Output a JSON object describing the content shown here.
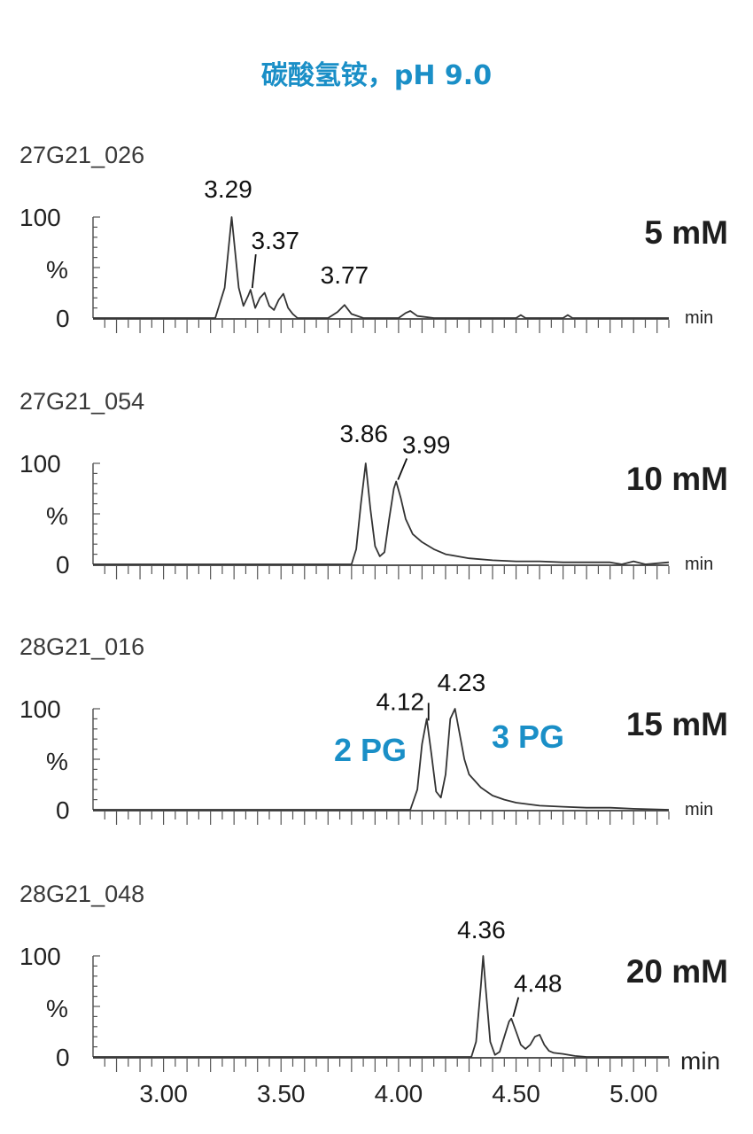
{
  "title": "碳酸氢铵，pH 9.0",
  "accent_color": "#1a8fc7",
  "chart_data": [
    {
      "type": "line",
      "sample_id": "27G21_026",
      "concentration": "5 mM",
      "ylabel": "%",
      "yticks": [
        "0",
        "100"
      ],
      "xunit": "min",
      "xlim": [
        2.7,
        5.15
      ],
      "ylim": [
        0,
        100
      ],
      "peak_labels": [
        {
          "label": "3.29",
          "x": 3.29
        },
        {
          "label": "3.37",
          "x": 3.37
        },
        {
          "label": "3.77",
          "x": 3.77
        }
      ],
      "series": [
        {
          "x": [
            2.7,
            3.22,
            3.26,
            3.29,
            3.32,
            3.34,
            3.36,
            3.37,
            3.39,
            3.41,
            3.43,
            3.45,
            3.47,
            3.49,
            3.51,
            3.53,
            3.55,
            3.57,
            3.7,
            3.74,
            3.77,
            3.8,
            3.85,
            4.0,
            4.03,
            4.05,
            4.08,
            4.15,
            4.5,
            4.52,
            4.54,
            4.7,
            4.72,
            4.74,
            5.15
          ],
          "y": [
            0,
            0,
            30,
            100,
            30,
            12,
            22,
            28,
            10,
            20,
            25,
            12,
            8,
            18,
            24,
            10,
            4,
            0,
            0,
            6,
            13,
            4,
            0,
            0,
            5,
            7,
            2,
            0,
            0,
            3,
            0,
            0,
            3,
            0,
            0
          ]
        }
      ]
    },
    {
      "type": "line",
      "sample_id": "27G21_054",
      "concentration": "10 mM",
      "ylabel": "%",
      "yticks": [
        "0",
        "100"
      ],
      "xunit": "min",
      "xlim": [
        2.7,
        5.15
      ],
      "ylim": [
        0,
        100
      ],
      "peak_labels": [
        {
          "label": "3.86",
          "x": 3.86
        },
        {
          "label": "3.99",
          "x": 3.99
        }
      ],
      "series": [
        {
          "x": [
            2.7,
            3.8,
            3.82,
            3.84,
            3.86,
            3.88,
            3.9,
            3.92,
            3.94,
            3.96,
            3.98,
            3.99,
            4.01,
            4.03,
            4.06,
            4.1,
            4.15,
            4.2,
            4.25,
            4.3,
            4.4,
            4.5,
            4.6,
            4.7,
            4.8,
            4.9,
            4.95,
            5.0,
            5.05,
            5.15
          ],
          "y": [
            0,
            0,
            15,
            60,
            100,
            55,
            18,
            8,
            12,
            45,
            75,
            82,
            65,
            45,
            30,
            22,
            15,
            10,
            8,
            6,
            4,
            3,
            3,
            2,
            2,
            2,
            0,
            3,
            0,
            2
          ]
        }
      ]
    },
    {
      "type": "line",
      "sample_id": "28G21_016",
      "concentration": "15 mM",
      "ylabel": "%",
      "yticks": [
        "0",
        "100"
      ],
      "xunit": "min",
      "xlim": [
        2.7,
        5.15
      ],
      "ylim": [
        0,
        100
      ],
      "peak_labels": [
        {
          "label": "4.12",
          "x": 4.12
        },
        {
          "label": "4.23",
          "x": 4.23
        }
      ],
      "annotations": [
        "2 PG",
        "3 PG"
      ],
      "series": [
        {
          "x": [
            2.7,
            4.05,
            4.08,
            4.1,
            4.12,
            4.14,
            4.16,
            4.18,
            4.2,
            4.22,
            4.24,
            4.26,
            4.28,
            4.3,
            4.35,
            4.4,
            4.45,
            4.5,
            4.6,
            4.7,
            4.8,
            4.9,
            5.0,
            5.15
          ],
          "y": [
            0,
            0,
            20,
            65,
            90,
            55,
            18,
            12,
            35,
            90,
            100,
            75,
            50,
            35,
            22,
            14,
            10,
            7,
            4,
            3,
            2,
            2,
            1,
            0
          ]
        }
      ]
    },
    {
      "type": "line",
      "sample_id": "28G21_048",
      "concentration": "20 mM",
      "ylabel": "%",
      "yticks": [
        "0",
        "100"
      ],
      "xunit": "min",
      "xticks": [
        "3.00",
        "3.50",
        "4.00",
        "4.50",
        "5.00"
      ],
      "xlim": [
        2.7,
        5.15
      ],
      "ylim": [
        0,
        100
      ],
      "peak_labels": [
        {
          "label": "4.36",
          "x": 4.36
        },
        {
          "label": "4.48",
          "x": 4.48
        }
      ],
      "series": [
        {
          "x": [
            2.7,
            4.31,
            4.33,
            4.35,
            4.36,
            4.37,
            4.39,
            4.41,
            4.43,
            4.45,
            4.47,
            4.48,
            4.5,
            4.52,
            4.54,
            4.56,
            4.58,
            4.6,
            4.62,
            4.64,
            4.66,
            4.7,
            4.75,
            4.8,
            5.15
          ],
          "y": [
            0,
            0,
            15,
            70,
            100,
            70,
            15,
            2,
            5,
            20,
            35,
            38,
            25,
            12,
            8,
            12,
            20,
            22,
            12,
            6,
            4,
            3,
            1,
            0,
            0
          ]
        }
      ]
    }
  ]
}
